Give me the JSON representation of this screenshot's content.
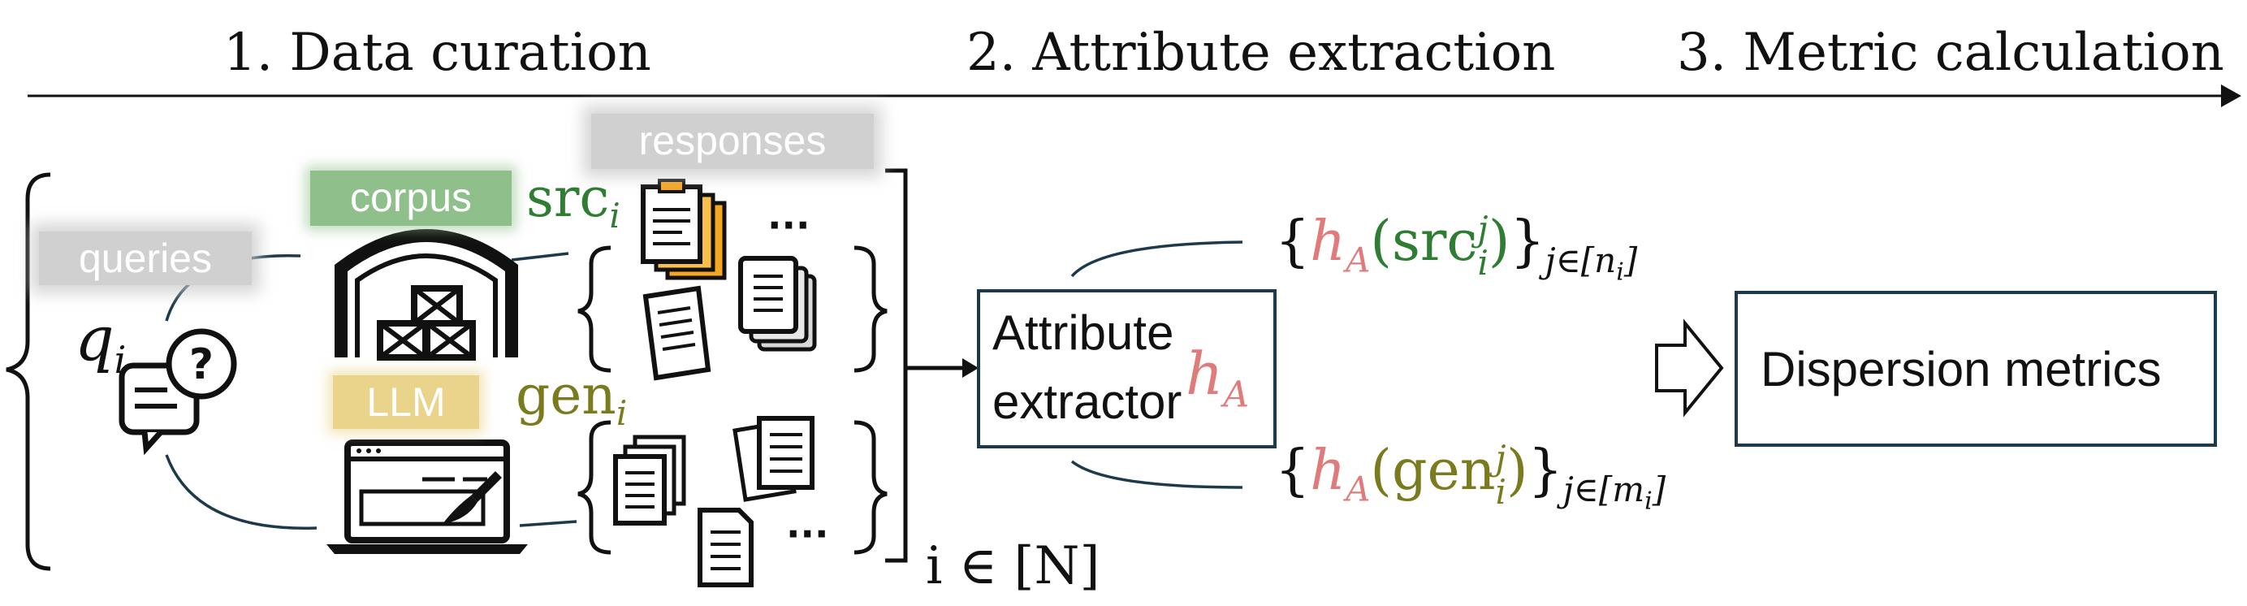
{
  "stages": [
    {
      "label": "1. Data curation"
    },
    {
      "label": "2. Attribute extraction"
    },
    {
      "label": "3. Metric calculation"
    }
  ],
  "badges": {
    "responses": "responses",
    "corpus": "corpus",
    "queries": "queries",
    "llm": "LLM"
  },
  "labels": {
    "src": "src",
    "src_sub": "i",
    "gen": "gen",
    "gen_sub": "i",
    "q": "q",
    "q_sub": "i",
    "ellipsis_top": "···",
    "ellipsis_bottom": "···",
    "index_range": "i ∈ [N]"
  },
  "extractor": {
    "line1": "Attribute",
    "line2": "extractor",
    "symbol": "h",
    "symbol_sub": "A"
  },
  "outputs": {
    "top": {
      "open": "{",
      "h": "h",
      "h_sub": "A",
      "lp": "(",
      "arg": "src",
      "arg_sup": "j",
      "arg_sub": "i",
      "rp": ")",
      "close": "}",
      "subscript": "j∈[n",
      "subscript_sub": "i",
      "subscript_end": "]"
    },
    "bottom": {
      "open": "{",
      "h": "h",
      "h_sub": "A",
      "lp": "(",
      "arg": "gen",
      "arg_sup": "j",
      "arg_sub": "i",
      "rp": ")",
      "close": "}",
      "subscript": "j∈[m",
      "subscript_sub": "i",
      "subscript_end": "]"
    }
  },
  "metrics": {
    "label": "Dispersion metrics"
  },
  "colors": {
    "src_green": "#2e7d32",
    "gen_olive": "#7a7a1e",
    "h_pink": "#e07b7b",
    "box_border": "#1d3a4a",
    "line_teal": "#1d3a4a"
  },
  "icons": [
    "warehouse-icon",
    "laptop-paintbrush-icon",
    "question-chat-icon",
    "documents-icon",
    "arrow-outline-icon"
  ]
}
